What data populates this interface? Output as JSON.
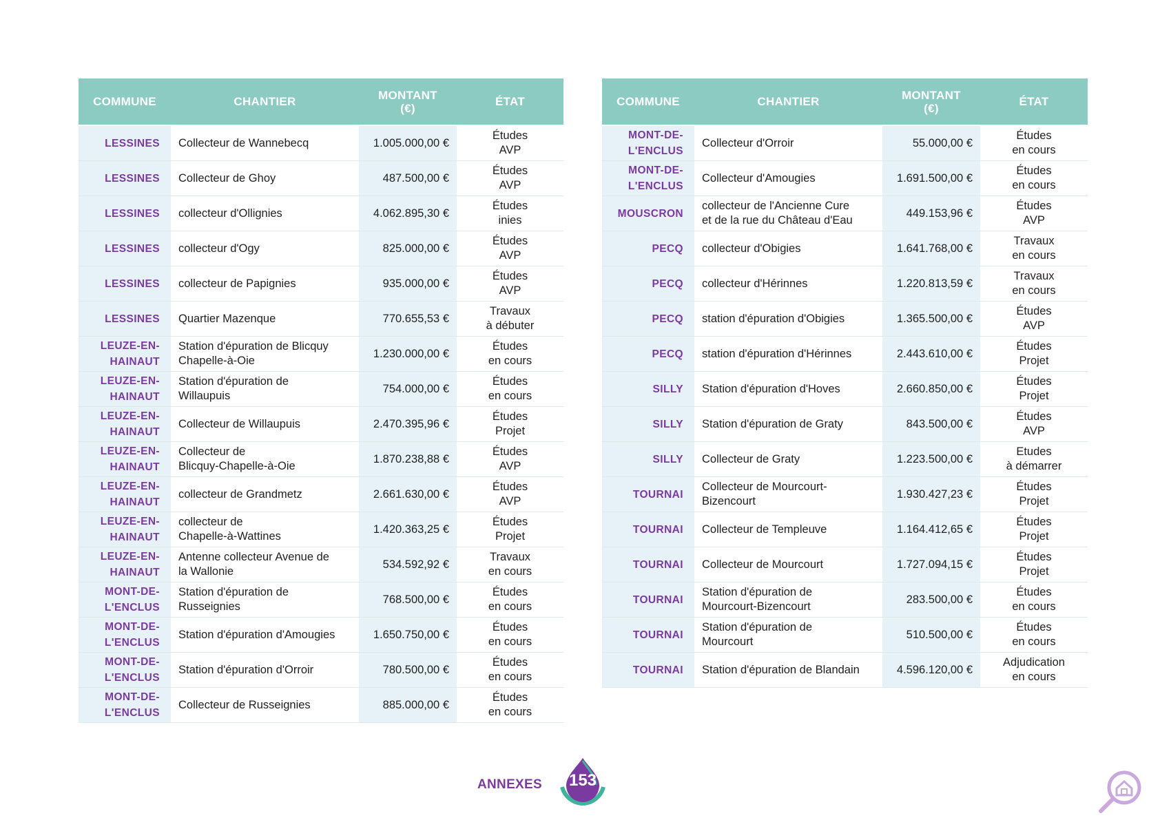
{
  "left_table": {
    "headers": [
      "COMMUNE",
      "CHANTIER",
      "MONTANT",
      "(€)",
      "ÉTAT"
    ],
    "rows": [
      {
        "commune": [
          "LESSINES"
        ],
        "chantier": [
          "Collecteur de Wannebecq"
        ],
        "montant": "1.005.000,00 €",
        "etat": [
          "Études",
          "AVP"
        ]
      },
      {
        "commune": [
          "LESSINES"
        ],
        "chantier": [
          "Collecteur de Ghoy"
        ],
        "montant": "487.500,00 €",
        "etat": [
          "Études",
          "AVP"
        ]
      },
      {
        "commune": [
          "LESSINES"
        ],
        "chantier": [
          "collecteur d'Ollignies"
        ],
        "montant": "4.062.895,30 €",
        "etat": [
          "Études",
          "inies"
        ]
      },
      {
        "commune": [
          "LESSINES"
        ],
        "chantier": [
          "collecteur d'Ogy"
        ],
        "montant": "825.000,00 €",
        "etat": [
          "Études",
          "AVP"
        ]
      },
      {
        "commune": [
          "LESSINES"
        ],
        "chantier": [
          "collecteur de Papignies"
        ],
        "montant": "935.000,00 €",
        "etat": [
          "Études",
          "AVP"
        ]
      },
      {
        "commune": [
          "LESSINES"
        ],
        "chantier": [
          "Quartier Mazenque"
        ],
        "montant": "770.655,53 €",
        "etat": [
          "Travaux",
          "à débuter"
        ]
      },
      {
        "commune": [
          "LEUZE-EN-",
          "HAINAUT"
        ],
        "chantier": [
          "Station d'épuration de Blicquy",
          "Chapelle-à-Oie"
        ],
        "montant": "1.230.000,00 €",
        "etat": [
          "Études",
          "en cours"
        ]
      },
      {
        "commune": [
          "LEUZE-EN-",
          "HAINAUT"
        ],
        "chantier": [
          "Station d'épuration de",
          "Willaupuis"
        ],
        "montant": "754.000,00 €",
        "etat": [
          "Études",
          "en cours"
        ]
      },
      {
        "commune": [
          "LEUZE-EN-",
          "HAINAUT"
        ],
        "chantier": [
          "Collecteur de Willaupuis"
        ],
        "montant": "2.470.395,96 €",
        "etat": [
          "Études",
          "Projet"
        ]
      },
      {
        "commune": [
          "LEUZE-EN-",
          "HAINAUT"
        ],
        "chantier": [
          "Collecteur de",
          "Blicquy-Chapelle-à-Oie"
        ],
        "montant": "1.870.238,88 €",
        "etat": [
          "Études",
          "AVP"
        ]
      },
      {
        "commune": [
          "LEUZE-EN-",
          "HAINAUT"
        ],
        "chantier": [
          "collecteur de Grandmetz"
        ],
        "montant": "2.661.630,00 €",
        "etat": [
          "Études",
          "AVP"
        ]
      },
      {
        "commune": [
          "LEUZE-EN-",
          "HAINAUT"
        ],
        "chantier": [
          "collecteur de",
          "Chapelle-à-Wattines"
        ],
        "montant": "1.420.363,25 €",
        "etat": [
          "Études",
          "Projet"
        ]
      },
      {
        "commune": [
          "LEUZE-EN-",
          "HAINAUT"
        ],
        "chantier": [
          "Antenne collecteur Avenue de",
          "la Wallonie"
        ],
        "montant": "534.592,92 €",
        "etat": [
          "Travaux",
          "en cours"
        ]
      },
      {
        "commune": [
          "MONT-DE-",
          "L'ENCLUS"
        ],
        "chantier": [
          "Station d'épuration de",
          "Russeignies"
        ],
        "montant": "768.500,00 €",
        "etat": [
          "Études",
          "en cours"
        ]
      },
      {
        "commune": [
          "MONT-DE-",
          "L'ENCLUS"
        ],
        "chantier": [
          "Station d'épuration d'Amougies"
        ],
        "montant": "1.650.750,00 €",
        "etat": [
          "Études",
          "en cours"
        ]
      },
      {
        "commune": [
          "MONT-DE-",
          "L'ENCLUS"
        ],
        "chantier": [
          "Station d'épuration d'Orroir"
        ],
        "montant": "780.500,00 €",
        "etat": [
          "Études",
          "en cours"
        ]
      },
      {
        "commune": [
          "MONT-DE-",
          "L'ENCLUS"
        ],
        "chantier": [
          "Collecteur de Russeignies"
        ],
        "montant": "885.000,00 €",
        "etat": [
          "Études",
          "en cours"
        ]
      }
    ]
  },
  "right_table": {
    "headers": [
      "COMMUNE",
      "CHANTIER",
      "MONTANT",
      "(€)",
      "ÉTAT"
    ],
    "rows": [
      {
        "commune": [
          "MONT-DE-",
          "L'ENCLUS"
        ],
        "chantier": [
          "Collecteur d'Orroir"
        ],
        "montant": "55.000,00 €",
        "etat": [
          "Études",
          "en cours"
        ]
      },
      {
        "commune": [
          "MONT-DE-",
          "L'ENCLUS"
        ],
        "chantier": [
          "Collecteur d'Amougies"
        ],
        "montant": "1.691.500,00 €",
        "etat": [
          "Études",
          "en cours"
        ]
      },
      {
        "commune": [
          "MOUSCRON"
        ],
        "chantier": [
          "collecteur de l'Ancienne Cure",
          "et de la rue du Château d'Eau"
        ],
        "montant": "449.153,96 €",
        "etat": [
          "Études",
          "AVP"
        ]
      },
      {
        "commune": [
          "PECQ"
        ],
        "chantier": [
          "collecteur d'Obigies"
        ],
        "montant": "1.641.768,00 €",
        "etat": [
          "Travaux",
          "en cours"
        ]
      },
      {
        "commune": [
          "PECQ"
        ],
        "chantier": [
          "collecteur d'Hérinnes"
        ],
        "montant": "1.220.813,59 €",
        "etat": [
          "Travaux",
          "en cours"
        ]
      },
      {
        "commune": [
          "PECQ"
        ],
        "chantier": [
          "station d'épuration d'Obigies"
        ],
        "montant": "1.365.500,00 €",
        "etat": [
          "Études",
          "AVP"
        ]
      },
      {
        "commune": [
          "PECQ"
        ],
        "chantier": [
          "station d'épuration d'Hérinnes"
        ],
        "montant": "2.443.610,00 €",
        "etat": [
          "Études",
          "Projet"
        ]
      },
      {
        "commune": [
          "SILLY"
        ],
        "chantier": [
          "Station d'épuration d'Hoves"
        ],
        "montant": "2.660.850,00 €",
        "etat": [
          "Études",
          "Projet"
        ]
      },
      {
        "commune": [
          "SILLY"
        ],
        "chantier": [
          "Station d'épuration de Graty"
        ],
        "montant": "843.500,00 €",
        "etat": [
          "Études",
          "AVP"
        ]
      },
      {
        "commune": [
          "SILLY"
        ],
        "chantier": [
          "Collecteur de Graty"
        ],
        "montant": "1.223.500,00 €",
        "etat": [
          "Etudes",
          "à démarrer"
        ]
      },
      {
        "commune": [
          "TOURNAI"
        ],
        "chantier": [
          "Collecteur de Mourcourt-",
          "Bizencourt"
        ],
        "montant": "1.930.427,23 €",
        "etat": [
          "Études",
          "Projet"
        ]
      },
      {
        "commune": [
          "TOURNAI"
        ],
        "chantier": [
          "Collecteur de Templeuve"
        ],
        "montant": "1.164.412,65 €",
        "etat": [
          "Études",
          "Projet"
        ]
      },
      {
        "commune": [
          "TOURNAI"
        ],
        "chantier": [
          "Collecteur de Mourcourt"
        ],
        "montant": "1.727.094,15 €",
        "etat": [
          "Études",
          "Projet"
        ]
      },
      {
        "commune": [
          "TOURNAI"
        ],
        "chantier": [
          "Station d'épuration de",
          "Mourcourt-Bizencourt"
        ],
        "montant": "283.500,00 €",
        "etat": [
          "Études",
          "en cours"
        ]
      },
      {
        "commune": [
          "TOURNAI"
        ],
        "chantier": [
          "Station d'épuration de",
          "Mourcourt"
        ],
        "montant": "510.500,00 €",
        "etat": [
          "Études",
          "en cours"
        ]
      },
      {
        "commune": [
          "TOURNAI"
        ],
        "chantier": [
          "Station d'épuration de Blandain"
        ],
        "montant": "4.596.120,00 €",
        "etat": [
          "Adjudication",
          "en cours"
        ]
      }
    ]
  },
  "footer": {
    "label": "ANNEXES",
    "page_number": "153"
  },
  "icons": {
    "page_badge": "water-drop-icon",
    "corner": "magnifier-house-icon"
  },
  "colors": {
    "header_bg": "#8ccbc1",
    "commune_text": "#7b3aa0",
    "light_cell_bg": "#e6f2f8",
    "badge_purple": "#7b3aa0",
    "badge_teal": "#3fb39b"
  }
}
